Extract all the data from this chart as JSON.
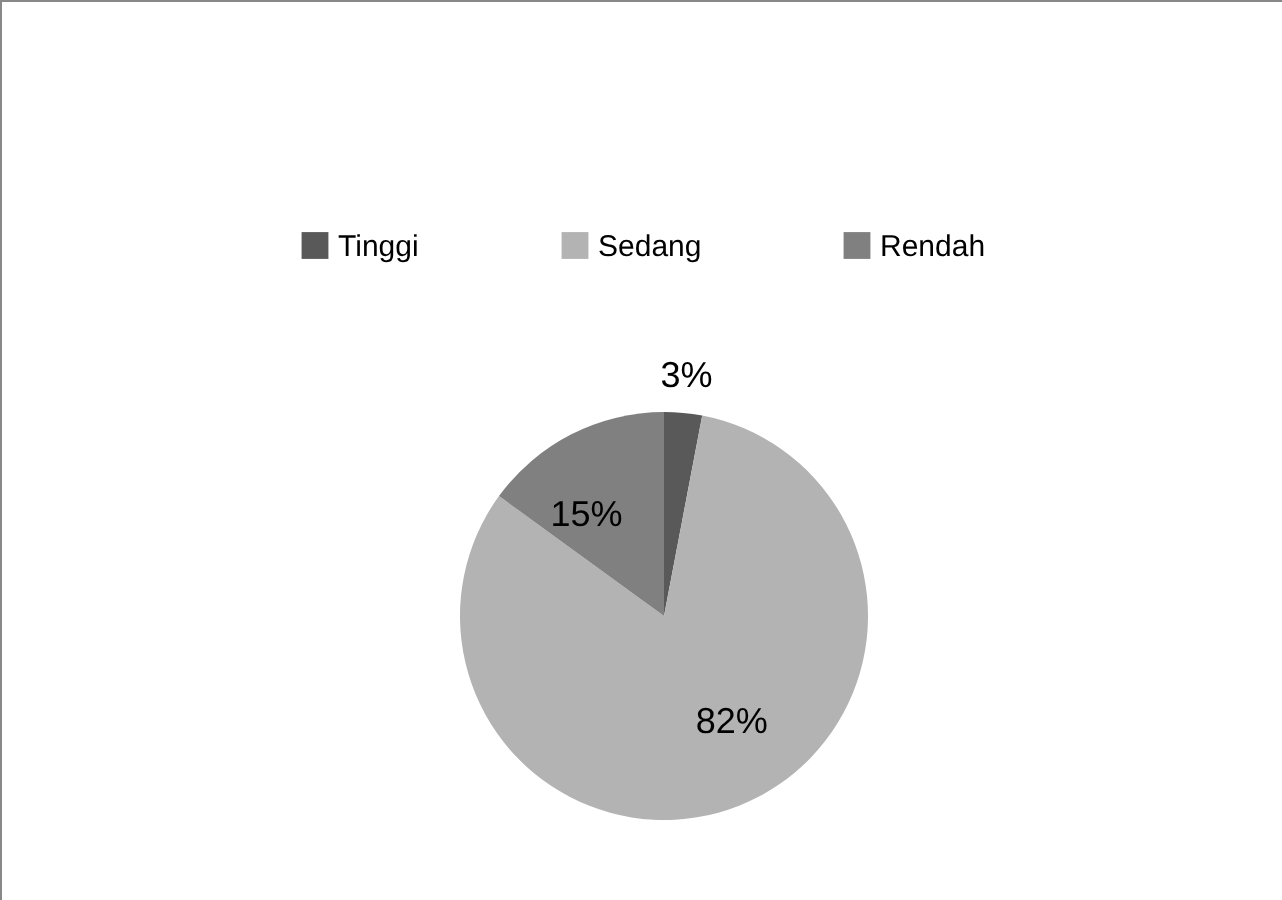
{
  "chart_data": {
    "type": "pie",
    "categories": [
      "Tinggi",
      "Sedang",
      "Rendah"
    ],
    "values": [
      3,
      82,
      15
    ],
    "colors": [
      "#595959",
      "#b3b3b3",
      "#808080"
    ],
    "value_labels": [
      "3%",
      "82%",
      "15%"
    ],
    "legend": "top"
  }
}
